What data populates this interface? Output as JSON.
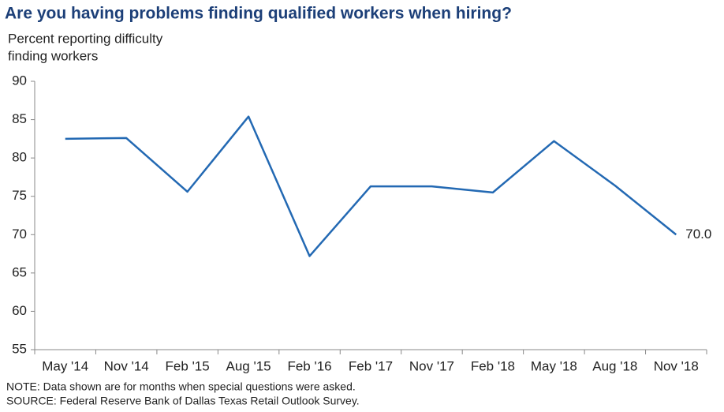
{
  "chart_data": {
    "type": "line",
    "title": "Are you having problems finding qualified workers when hiring?",
    "ylabel": [
      "Percent reporting difficulty",
      "finding workers"
    ],
    "categories": [
      "May '14",
      "Nov '14",
      "Feb '15",
      "Aug '15",
      "Feb '16",
      "Feb '17",
      "Nov '17",
      "Feb '18",
      "May '18",
      "Aug '18",
      "Nov '18"
    ],
    "values": [
      82.5,
      82.6,
      75.6,
      85.4,
      67.2,
      76.3,
      76.3,
      75.5,
      82.2,
      76.4,
      70.0
    ],
    "value_labels": [
      null,
      null,
      null,
      null,
      null,
      null,
      null,
      null,
      null,
      null,
      "70.0"
    ],
    "color": "#2369b3",
    "ylim": [
      55,
      90
    ],
    "yticks": [
      55,
      60,
      65,
      70,
      75,
      80,
      85,
      90
    ],
    "grid": false,
    "notes": [
      "NOTE: Data shown are for months when special questions were asked.",
      "SOURCE: Federal Reserve Bank of Dallas Texas Retail Outlook Survey."
    ]
  }
}
